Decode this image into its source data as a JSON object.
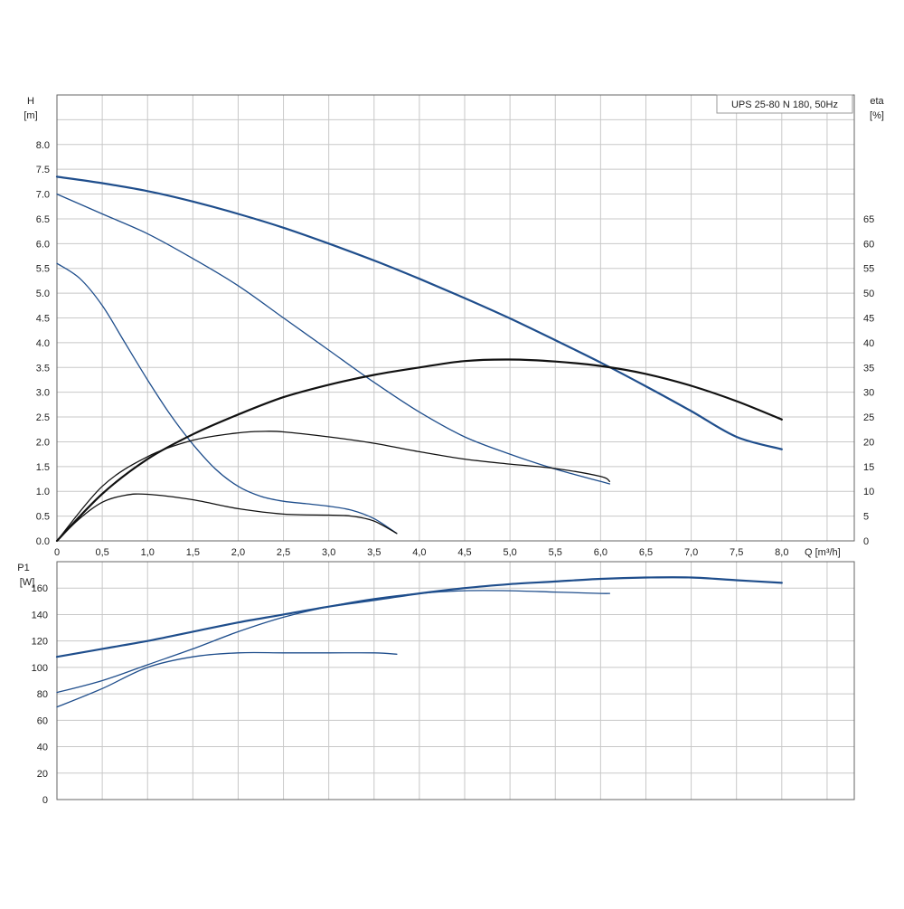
{
  "colors": {
    "blue": "#1f4e8c",
    "black": "#111111",
    "grid": "#c8c8c8",
    "frame": "#666666"
  },
  "chart_data": [
    {
      "id": "head-eta",
      "type": "line",
      "title": "UPS 25-80 N 180, 50Hz",
      "xlabel": "Q [m³/h]",
      "ylabel_left_name": "H",
      "ylabel_left_unit": "[m]",
      "ylabel_right_name": "eta",
      "ylabel_right_unit": "[%]",
      "xlim": [
        0,
        8.8
      ],
      "ylim_left": [
        0,
        9
      ],
      "ylim_right": [
        0,
        90
      ],
      "x_ticks": [
        "0",
        "0,5",
        "1,0",
        "1,5",
        "2,0",
        "2,5",
        "3,0",
        "3,5",
        "4,0",
        "4,5",
        "5,0",
        "5,5",
        "6,0",
        "6,5",
        "7,0",
        "7,5",
        "8,0"
      ],
      "y_left_ticks": [
        "0.0",
        "0.5",
        "1.0",
        "1.5",
        "2.0",
        "2.5",
        "3.0",
        "3.5",
        "4.0",
        "4.5",
        "5.0",
        "5.5",
        "6.0",
        "6.5",
        "7.0",
        "7.5",
        "8.0"
      ],
      "y_right_ticks": [
        "0",
        "5",
        "10",
        "15",
        "20",
        "25",
        "30",
        "35",
        "40",
        "45",
        "50",
        "55",
        "60",
        "65"
      ],
      "grid": true,
      "series": [
        {
          "kind": "H",
          "axis": "left",
          "color": "blue",
          "width": 2.2,
          "x": [
            0,
            0.5,
            1.0,
            1.5,
            2.0,
            2.5,
            3.0,
            3.5,
            4.0,
            4.5,
            5.0,
            5.5,
            6.0,
            6.5,
            7.0,
            7.5,
            8.0
          ],
          "y": [
            7.35,
            7.22,
            7.06,
            6.85,
            6.6,
            6.32,
            6.0,
            5.66,
            5.29,
            4.9,
            4.49,
            4.05,
            3.6,
            3.12,
            2.62,
            2.1,
            1.85
          ]
        },
        {
          "kind": "H",
          "axis": "left",
          "color": "blue",
          "width": 1.3,
          "x": [
            0,
            0.5,
            1.0,
            1.5,
            2.0,
            2.5,
            3.0,
            3.5,
            4.0,
            4.5,
            5.0,
            5.5,
            6.0,
            6.1
          ],
          "y": [
            7.0,
            6.6,
            6.2,
            5.7,
            5.15,
            4.5,
            3.85,
            3.2,
            2.6,
            2.1,
            1.75,
            1.45,
            1.2,
            1.15
          ]
        },
        {
          "kind": "H",
          "axis": "left",
          "color": "blue",
          "width": 1.3,
          "x": [
            0,
            0.25,
            0.5,
            0.75,
            1.0,
            1.25,
            1.5,
            1.75,
            2.0,
            2.25,
            2.5,
            2.75,
            3.0,
            3.25,
            3.5,
            3.75
          ],
          "y": [
            5.6,
            5.3,
            4.75,
            4.0,
            3.25,
            2.55,
            1.95,
            1.45,
            1.1,
            0.9,
            0.8,
            0.75,
            0.7,
            0.62,
            0.45,
            0.15
          ]
        },
        {
          "kind": "eta",
          "axis": "right",
          "color": "black",
          "width": 2.2,
          "x": [
            0,
            0.5,
            1.0,
            1.5,
            2.0,
            2.5,
            3.0,
            3.5,
            4.0,
            4.5,
            5.0,
            5.5,
            6.0,
            6.5,
            7.0,
            7.5,
            8.0
          ],
          "y": [
            0,
            9.5,
            16.5,
            21.5,
            25.5,
            29,
            31.5,
            33.5,
            35,
            36.3,
            36.6,
            36.2,
            35.3,
            33.7,
            31.3,
            28.2,
            24.5
          ]
        },
        {
          "kind": "eta",
          "axis": "right",
          "color": "black",
          "width": 1.3,
          "x": [
            0,
            0.5,
            1.0,
            1.5,
            2.0,
            2.3,
            2.5,
            3.0,
            3.5,
            4.0,
            4.5,
            5.0,
            5.5,
            6.0,
            6.1
          ],
          "y": [
            0,
            11,
            17,
            20.3,
            21.8,
            22.1,
            22,
            21,
            19.7,
            18,
            16.5,
            15.5,
            14.6,
            13,
            12
          ]
        },
        {
          "kind": "eta",
          "axis": "right",
          "color": "black",
          "width": 1.3,
          "x": [
            0,
            0.25,
            0.5,
            0.75,
            1.0,
            1.5,
            2.0,
            2.5,
            3.0,
            3.25,
            3.5,
            3.75
          ],
          "y": [
            0,
            4.5,
            7.8,
            9.2,
            9.4,
            8.3,
            6.5,
            5.4,
            5.2,
            5.0,
            4.0,
            1.5
          ]
        }
      ]
    },
    {
      "id": "power",
      "type": "line",
      "ylabel_left_name": "P1",
      "ylabel_left_unit": "[W]",
      "xlim": [
        0,
        8.8
      ],
      "ylim": [
        0,
        180
      ],
      "y_ticks": [
        "0",
        "20",
        "40",
        "60",
        "80",
        "100",
        "120",
        "140",
        "160"
      ],
      "grid": true,
      "series": [
        {
          "kind": "P1",
          "color": "blue",
          "width": 2.2,
          "x": [
            0,
            0.5,
            1.0,
            1.5,
            2.0,
            2.5,
            3.0,
            3.5,
            4.0,
            4.5,
            5.0,
            5.5,
            6.0,
            6.5,
            7.0,
            7.5,
            8.0
          ],
          "y": [
            108,
            114,
            120,
            127,
            134,
            140,
            146,
            151,
            156,
            160,
            163,
            165,
            167,
            168,
            168,
            166,
            164
          ]
        },
        {
          "kind": "P1",
          "color": "blue",
          "width": 1.3,
          "x": [
            0,
            0.5,
            1.0,
            1.5,
            2.0,
            2.5,
            3.0,
            3.5,
            4.0,
            4.5,
            5.0,
            5.5,
            6.0,
            6.1
          ],
          "y": [
            81,
            90,
            102,
            114,
            127,
            138,
            146,
            152,
            156,
            158,
            158,
            157,
            156,
            156
          ]
        },
        {
          "kind": "P1",
          "color": "blue",
          "width": 1.3,
          "x": [
            0,
            0.5,
            1.0,
            1.5,
            2.0,
            2.5,
            3.0,
            3.5,
            3.75
          ],
          "y": [
            70,
            84,
            100,
            108,
            111,
            111,
            111,
            111,
            110
          ]
        }
      ]
    }
  ]
}
